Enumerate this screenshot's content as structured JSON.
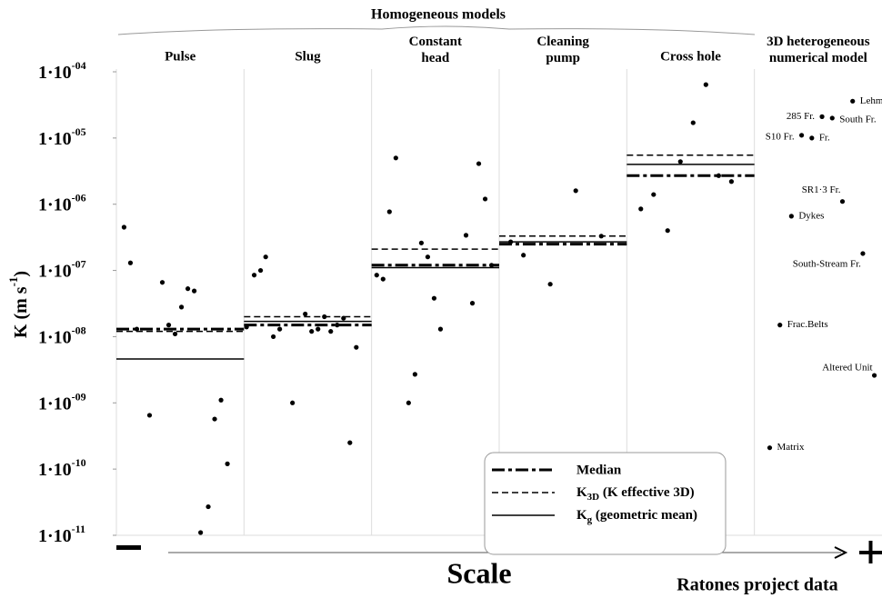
{
  "chart_data": {
    "type": "scatter",
    "group_title": "Homogeneous models",
    "ylabel": "K (m s-1)",
    "xlabel": "Scale",
    "footer": "Ratones project data",
    "ylog": true,
    "ylim": [
      1e-11,
      0.0001
    ],
    "yticks": [
      {
        "value": 0.0001,
        "label": "1·10-04"
      },
      {
        "value": 1e-05,
        "label": "1·10-05"
      },
      {
        "value": 1e-06,
        "label": "1·10-06"
      },
      {
        "value": 1e-07,
        "label": "1·10-07"
      },
      {
        "value": 1e-08,
        "label": "1·10-08"
      },
      {
        "value": 1e-09,
        "label": "1·10-09"
      },
      {
        "value": 1e-10,
        "label": "1·10-10"
      },
      {
        "value": 1e-11,
        "label": "1·10-11"
      }
    ],
    "categories": [
      "Pulse",
      "Slug",
      "Constant head",
      "Cleaning pump",
      "Cross hole",
      "3D heterogeneous numerical model"
    ],
    "groups": [
      {
        "x": [
          0.06,
          0.11,
          0.16,
          0.26,
          0.36,
          0.41,
          0.46,
          0.51,
          0.56,
          0.61,
          0.66,
          0.72,
          0.77,
          0.82,
          0.87
        ],
        "values": [
          4.5e-07,
          1.3e-07,
          1.3e-08,
          6.5e-10,
          6.6e-08,
          1.5e-08,
          1.1e-08,
          2.8e-08,
          5.3e-08,
          4.9e-08,
          1.1e-11,
          2.7e-11,
          5.7e-10,
          1.1e-09,
          1.2e-10
        ]
      },
      {
        "x": [
          1.02,
          1.08,
          1.13,
          1.17,
          1.23,
          1.28,
          1.38,
          1.48,
          1.53,
          1.58,
          1.63,
          1.68,
          1.73,
          1.78,
          1.83,
          1.88
        ],
        "values": [
          1.4e-08,
          8.5e-08,
          1e-07,
          1.6e-07,
          1e-08,
          1.3e-08,
          1e-09,
          2.2e-08,
          1.2e-08,
          1.3e-08,
          2e-08,
          1.2e-08,
          1.5e-08,
          1.9e-08,
          2.5e-10,
          6.9e-09
        ]
      },
      {
        "x": [
          2.04,
          2.09,
          2.14,
          2.19,
          2.29,
          2.34,
          2.39,
          2.44,
          2.49,
          2.54,
          2.74,
          2.79,
          2.84,
          2.89,
          2.94
        ],
        "values": [
          8.5e-08,
          7.4e-08,
          7.7e-07,
          5e-06,
          1e-09,
          2.7e-09,
          2.6e-07,
          1.6e-07,
          3.8e-08,
          1.3e-08,
          3.4e-07,
          3.2e-08,
          4.1e-06,
          1.2e-06,
          1.2e-07
        ]
      },
      {
        "x": [
          3.09,
          3.19,
          3.4,
          3.6,
          3.8
        ],
        "values": [
          2.7e-07,
          1.7e-07,
          6.2e-08,
          1.6e-06,
          3.3e-07
        ]
      },
      {
        "x": [
          4.11,
          4.21,
          4.32,
          4.42,
          4.52,
          4.62,
          4.72,
          4.82
        ],
        "values": [
          8.5e-07,
          1.4e-06,
          4e-07,
          4.4e-06,
          1.7e-05,
          6.4e-05,
          2.7e-06,
          2.2e-06
        ]
      },
      {
        "x": [
          5.77,
          5.53,
          5.61,
          5.37,
          5.45,
          5.69,
          5.29,
          5.85,
          5.2,
          5.94,
          5.12
        ],
        "values": [
          3.6e-05,
          2.1e-05,
          2e-05,
          1.1e-05,
          1e-05,
          1.1e-06,
          6.6e-07,
          1.8e-07,
          1.5e-08,
          2.6e-09,
          2.1e-10
        ],
        "labels": [
          "Lehm",
          "285 Fr.",
          "South Fr.",
          "S10 Fr.",
          "Fr.",
          "SR1·3 Fr.",
          "Dykes",
          "South-Stream Fr.",
          "Frac.Belts",
          "Altered Unit",
          "Matrix"
        ]
      }
    ],
    "series": [
      {
        "name": "Median",
        "style": "dashdot",
        "color": "#000000",
        "values": [
          1.3e-08,
          1.5e-08,
          1.2e-07,
          2.5e-07,
          2.7e-06,
          null
        ]
      },
      {
        "name": "K3D (K effective 3D)",
        "style": "dashed",
        "color": "#000000",
        "values": [
          1.2e-08,
          2e-08,
          2.1e-07,
          3.3e-07,
          5.5e-06,
          null
        ]
      },
      {
        "name": "Kg (geometric mean)",
        "style": "solid",
        "color": "#000000",
        "values": [
          4.6e-09,
          1.7e-08,
          1.1e-07,
          2.7e-07,
          4e-06,
          null
        ]
      }
    ],
    "xlim": [
      0,
      6
    ]
  }
}
